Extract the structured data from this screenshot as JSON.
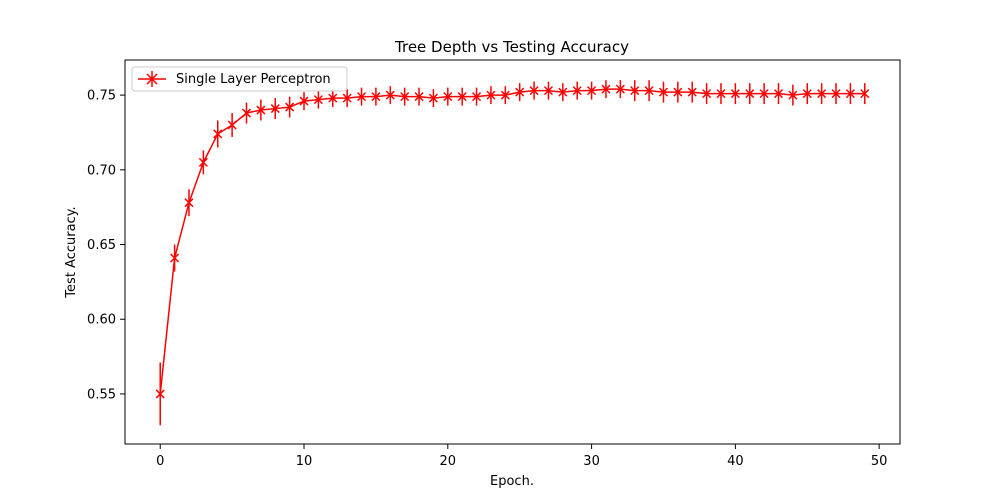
{
  "chart_data": {
    "type": "line",
    "title": "Tree Depth vs Testing Accuracy",
    "xlabel": "Epoch.",
    "ylabel": "Test Accuracy.",
    "xlim": [
      -2.45,
      51.45
    ],
    "ylim": [
      0.5165,
      0.7735
    ],
    "xticks": [
      0,
      10,
      20,
      30,
      40,
      50
    ],
    "xtick_labels": [
      "0",
      "10",
      "20",
      "30",
      "40",
      "50"
    ],
    "yticks": [
      0.55,
      0.6,
      0.65,
      0.7,
      0.75
    ],
    "ytick_labels": [
      "0.55",
      "0.60",
      "0.65",
      "0.70",
      "0.75"
    ],
    "grid": false,
    "legend_position": "top-left",
    "color": "#ff0000",
    "series": [
      {
        "name": "Single Layer Perceptron",
        "marker": "x",
        "x": [
          0,
          1,
          2,
          3,
          4,
          5,
          6,
          7,
          8,
          9,
          10,
          11,
          12,
          13,
          14,
          15,
          16,
          17,
          18,
          19,
          20,
          21,
          22,
          23,
          24,
          25,
          26,
          27,
          28,
          29,
          30,
          31,
          32,
          33,
          34,
          35,
          36,
          37,
          38,
          39,
          40,
          41,
          42,
          43,
          44,
          45,
          46,
          47,
          48,
          49
        ],
        "y": [
          0.55,
          0.641,
          0.678,
          0.705,
          0.724,
          0.73,
          0.738,
          0.74,
          0.741,
          0.742,
          0.746,
          0.747,
          0.748,
          0.748,
          0.749,
          0.749,
          0.75,
          0.749,
          0.749,
          0.748,
          0.749,
          0.749,
          0.749,
          0.75,
          0.75,
          0.752,
          0.753,
          0.753,
          0.752,
          0.753,
          0.753,
          0.754,
          0.754,
          0.753,
          0.753,
          0.752,
          0.752,
          0.752,
          0.751,
          0.751,
          0.751,
          0.751,
          0.751,
          0.751,
          0.75,
          0.751,
          0.751,
          0.751,
          0.751,
          0.751
        ],
        "err": [
          0.021,
          0.009,
          0.009,
          0.008,
          0.009,
          0.008,
          0.007,
          0.007,
          0.007,
          0.007,
          0.006,
          0.006,
          0.006,
          0.006,
          0.006,
          0.006,
          0.006,
          0.006,
          0.006,
          0.006,
          0.006,
          0.006,
          0.006,
          0.006,
          0.006,
          0.006,
          0.006,
          0.006,
          0.006,
          0.006,
          0.006,
          0.006,
          0.006,
          0.007,
          0.007,
          0.007,
          0.007,
          0.007,
          0.007,
          0.007,
          0.007,
          0.007,
          0.007,
          0.007,
          0.007,
          0.007,
          0.007,
          0.007,
          0.007,
          0.007
        ]
      }
    ]
  }
}
